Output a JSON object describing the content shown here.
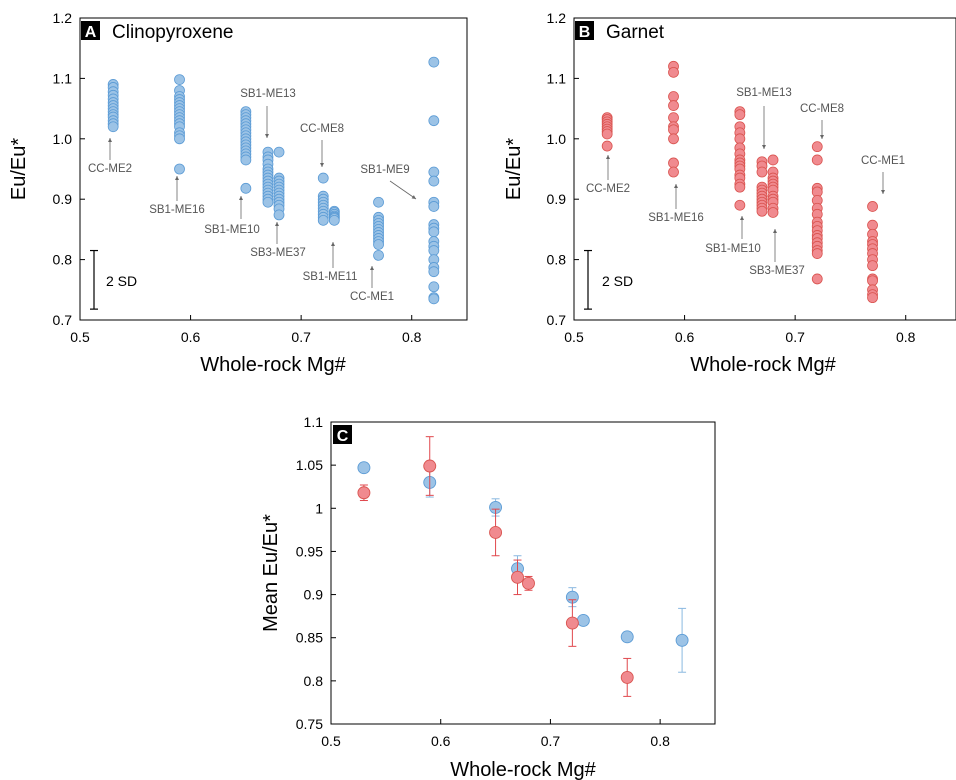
{
  "chart_data": [
    {
      "panel": "A",
      "title": "Clinopyroxene",
      "type": "scatter",
      "xlabel": "Whole-rock Mg#",
      "ylabel": "Eu/Eu*",
      "xlim": [
        0.5,
        0.85
      ],
      "ylim": [
        0.7,
        1.2
      ],
      "xticks": [
        "0.5",
        "0.6",
        "0.7",
        "0.8"
      ],
      "yticks": [
        "0.7",
        "0.8",
        "0.9",
        "1.0",
        "1.1",
        "1.2"
      ],
      "color": "#9cc3e6",
      "stroke": "#5b9bd5",
      "sd_label": "2 SD",
      "sd_range": [
        0.718,
        0.815
      ],
      "samples": [
        {
          "name": "CC-ME2",
          "x": 0.53,
          "values": [
            1.09,
            1.085,
            1.078,
            1.072,
            1.066,
            1.06,
            1.055,
            1.05,
            1.045,
            1.04,
            1.036,
            1.03,
            1.025,
            1.02
          ]
        },
        {
          "name": "SB1-ME16",
          "x": 0.59,
          "values": [
            1.098,
            1.08,
            1.07,
            1.065,
            1.06,
            1.055,
            1.05,
            1.045,
            1.04,
            1.035,
            1.03,
            1.025,
            1.02,
            1.01,
            1.005,
            1.0,
            0.95
          ]
        },
        {
          "name": "SB1-ME10",
          "x": 0.65,
          "values": [
            1.045,
            1.04,
            1.035,
            1.03,
            1.025,
            1.02,
            1.015,
            1.01,
            1.005,
            1.0,
            0.995,
            0.99,
            0.985,
            0.98,
            0.975,
            0.97,
            0.965,
            0.918
          ]
        },
        {
          "name": "SB1-ME13",
          "x": 0.67,
          "values": [
            0.978,
            0.97,
            0.965,
            0.958,
            0.95,
            0.945,
            0.94,
            0.935,
            0.93,
            0.925,
            0.92,
            0.915,
            0.91,
            0.905,
            0.9,
            0.895
          ]
        },
        {
          "name": "SB3-ME37",
          "x": 0.68,
          "values": [
            0.978,
            0.935,
            0.93,
            0.925,
            0.92,
            0.915,
            0.91,
            0.905,
            0.9,
            0.895,
            0.89,
            0.884,
            0.874
          ]
        },
        {
          "name": "CC-ME8",
          "x": 0.72,
          "values": [
            0.935,
            0.905,
            0.9,
            0.895,
            0.89,
            0.885,
            0.88,
            0.875,
            0.87,
            0.865
          ]
        },
        {
          "name": "SB1-ME11",
          "x": 0.73,
          "values": [
            0.88,
            0.878,
            0.875,
            0.872,
            0.87,
            0.868,
            0.865
          ]
        },
        {
          "name": "CC-ME1",
          "x": 0.77,
          "values": [
            0.895,
            0.87,
            0.865,
            0.86,
            0.855,
            0.85,
            0.845,
            0.84,
            0.835,
            0.83,
            0.825,
            0.807
          ]
        },
        {
          "name": "SB1-ME9",
          "x": 0.82,
          "values": [
            1.127,
            1.03,
            0.945,
            0.93,
            0.895,
            0.888,
            0.858,
            0.852,
            0.846,
            0.83,
            0.822,
            0.815,
            0.8,
            0.787,
            0.78,
            0.755,
            0.737,
            0.735
          ]
        }
      ],
      "annotations": [
        {
          "text": "CC-ME2",
          "sample": "CC-ME2"
        },
        {
          "text": "SB1-ME16",
          "sample": "SB1-ME16"
        },
        {
          "text": "SB1-ME13",
          "sample": "SB1-ME13"
        },
        {
          "text": "SB1-ME10",
          "sample": "SB1-ME10"
        },
        {
          "text": "SB3-ME37",
          "sample": "SB3-ME37"
        },
        {
          "text": "CC-ME8",
          "sample": "CC-ME8"
        },
        {
          "text": "SB1-ME11",
          "sample": "SB1-ME11"
        },
        {
          "text": "CC-ME1",
          "sample": "CC-ME1"
        },
        {
          "text": "SB1-ME9",
          "sample": "SB1-ME9"
        }
      ]
    },
    {
      "panel": "B",
      "title": "Garnet",
      "type": "scatter",
      "xlabel": "Whole-rock Mg#",
      "ylabel": "Eu/Eu*",
      "xlim": [
        0.5,
        0.85
      ],
      "ylim": [
        0.7,
        1.2
      ],
      "xticks": [
        "0.5",
        "0.6",
        "0.7",
        "0.8"
      ],
      "yticks": [
        "0.7",
        "0.8",
        "0.9",
        "1.0",
        "1.1",
        "1.2"
      ],
      "color": "#f08a8f",
      "stroke": "#d9534f",
      "sd_label": "2 SD",
      "sd_range": [
        0.718,
        0.815
      ],
      "samples": [
        {
          "name": "CC-ME2",
          "x": 0.53,
          "values": [
            1.035,
            1.032,
            1.028,
            1.024,
            1.02,
            1.016,
            1.012,
            1.008,
            0.988
          ]
        },
        {
          "name": "SB1-ME16",
          "x": 0.59,
          "values": [
            1.12,
            1.11,
            1.07,
            1.055,
            1.035,
            1.02,
            1.015,
            1.0,
            0.96,
            0.945
          ]
        },
        {
          "name": "SB1-ME10",
          "x": 0.65,
          "values": [
            1.045,
            1.04,
            1.02,
            1.01,
            1.0,
            0.985,
            0.975,
            0.965,
            0.96,
            0.955,
            0.95,
            0.94,
            0.935,
            0.925,
            0.92,
            0.89
          ]
        },
        {
          "name": "SB1-ME13",
          "x": 0.67,
          "values": [
            0.962,
            0.955,
            0.945,
            0.92,
            0.915,
            0.91,
            0.905,
            0.9,
            0.895,
            0.89,
            0.885,
            0.88
          ]
        },
        {
          "name": "SB3-ME37",
          "x": 0.68,
          "values": [
            0.965,
            0.945,
            0.935,
            0.93,
            0.925,
            0.92,
            0.915,
            0.905,
            0.9,
            0.895,
            0.885,
            0.878
          ]
        },
        {
          "name": "CC-ME8",
          "x": 0.72,
          "values": [
            0.987,
            0.965,
            0.918,
            0.912,
            0.898,
            0.885,
            0.875,
            0.862,
            0.855,
            0.848,
            0.84,
            0.835,
            0.828,
            0.822,
            0.815,
            0.81,
            0.768
          ]
        },
        {
          "name": "CC-ME1",
          "x": 0.77,
          "values": [
            0.888,
            0.857,
            0.842,
            0.83,
            0.825,
            0.818,
            0.81,
            0.8,
            0.79,
            0.768,
            0.765,
            0.75,
            0.742,
            0.737
          ]
        }
      ],
      "annotations": [
        {
          "text": "CC-ME2",
          "sample": "CC-ME2"
        },
        {
          "text": "SB1-ME16",
          "sample": "SB1-ME16"
        },
        {
          "text": "SB1-ME13",
          "sample": "SB1-ME13"
        },
        {
          "text": "CC-ME8",
          "sample": "CC-ME8"
        },
        {
          "text": "CC-ME1",
          "sample": "CC-ME1"
        },
        {
          "text": "SB1-ME10",
          "sample": "SB1-ME10"
        },
        {
          "text": "SB3-ME37",
          "sample": "SB3-ME37"
        }
      ]
    },
    {
      "panel": "C",
      "title": "",
      "type": "scatter",
      "xlabel": "Whole-rock Mg#",
      "ylabel": "Mean Eu/Eu*",
      "xlim": [
        0.5,
        0.85
      ],
      "ylim": [
        0.75,
        1.1
      ],
      "xticks": [
        "0.5",
        "0.6",
        "0.7",
        "0.8"
      ],
      "yticks": [
        "0.75",
        "0.8",
        "0.85",
        "0.9",
        "0.95",
        "1",
        "1.05",
        "1.1"
      ],
      "series": [
        {
          "color": "#9cc3e6",
          "stroke": "#5b9bd5",
          "errcolor": "#8ab8e0",
          "points": [
            {
              "x": 0.53,
              "y": 1.047,
              "err": 0
            },
            {
              "x": 0.59,
              "y": 1.03,
              "err": 0.017
            },
            {
              "x": 0.65,
              "y": 1.001,
              "err": 0.01
            },
            {
              "x": 0.67,
              "y": 0.93,
              "err": 0.015
            },
            {
              "x": 0.72,
              "y": 0.897,
              "err": 0.011
            },
            {
              "x": 0.73,
              "y": 0.87,
              "err": 0
            },
            {
              "x": 0.77,
              "y": 0.851,
              "err": 0
            },
            {
              "x": 0.82,
              "y": 0.847,
              "err": 0.037
            }
          ]
        },
        {
          "color": "#f08a8f",
          "stroke": "#d9534f",
          "errcolor": "#e0474c",
          "points": [
            {
              "x": 0.53,
              "y": 1.018,
              "err": 0.009
            },
            {
              "x": 0.59,
              "y": 1.049,
              "err": 0.034
            },
            {
              "x": 0.65,
              "y": 0.972,
              "err": 0.027
            },
            {
              "x": 0.67,
              "y": 0.92,
              "err": 0.02
            },
            {
              "x": 0.68,
              "y": 0.913,
              "err": 0.008
            },
            {
              "x": 0.72,
              "y": 0.867,
              "err": 0.027
            },
            {
              "x": 0.77,
              "y": 0.804,
              "err": 0.022
            }
          ]
        }
      ]
    }
  ]
}
